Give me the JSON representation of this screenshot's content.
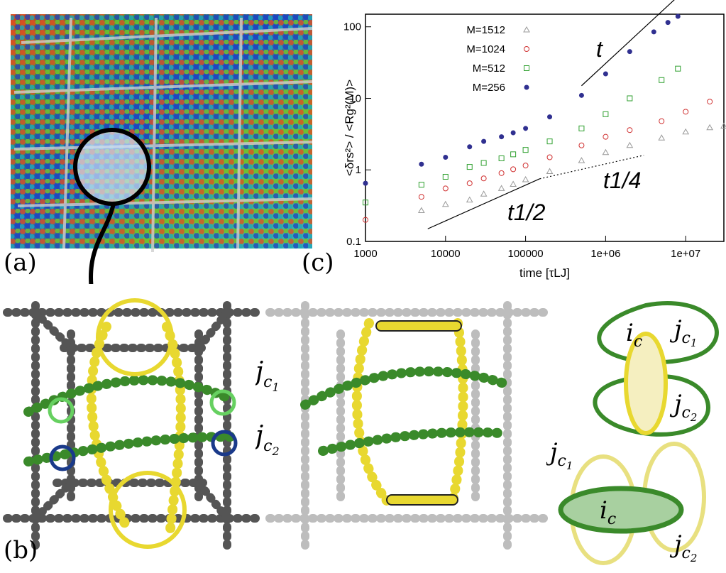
{
  "labels": {
    "a": "(a)",
    "b": "(b)",
    "c": "(c)"
  },
  "chart_data": {
    "type": "scatter",
    "xlabel": "time [τLJ]",
    "ylabel": "<δrs²> / <Rg²(M)>",
    "xscale": "log",
    "yscale": "log",
    "xlim": [
      1000,
      30000000
    ],
    "ylim": [
      0.1,
      150
    ],
    "xticks": [
      "1000",
      "10000",
      "100000",
      "1e+06",
      "1e+07"
    ],
    "yticks": [
      "0.1",
      "1",
      "10",
      "100"
    ],
    "legend_position": "top-left",
    "series": [
      {
        "name": "M=1512",
        "marker": "triangle-open",
        "color": "#999999",
        "x": [
          5000,
          10000,
          20000,
          30000,
          50000,
          70000,
          100000,
          200000,
          500000,
          1000000,
          2000000,
          5000000,
          10000000,
          20000000,
          30000000
        ],
        "y": [
          0.27,
          0.33,
          0.38,
          0.46,
          0.55,
          0.63,
          0.73,
          0.95,
          1.35,
          1.75,
          2.2,
          2.8,
          3.4,
          3.9,
          4.1
        ]
      },
      {
        "name": "M=1024",
        "marker": "circle-open",
        "color": "#d03030",
        "x": [
          1000,
          5000,
          10000,
          20000,
          30000,
          50000,
          70000,
          100000,
          200000,
          500000,
          1000000,
          2000000,
          5000000,
          10000000,
          20000000
        ],
        "y": [
          0.2,
          0.42,
          0.55,
          0.65,
          0.76,
          0.9,
          1.02,
          1.15,
          1.5,
          2.2,
          2.9,
          3.6,
          4.8,
          6.5,
          9.0
        ]
      },
      {
        "name": "M=512",
        "marker": "square-open",
        "color": "#30a030",
        "x": [
          1000,
          5000,
          10000,
          20000,
          30000,
          50000,
          70000,
          100000,
          200000,
          500000,
          1000000,
          2000000,
          5000000,
          8000000
        ],
        "y": [
          0.35,
          0.62,
          0.8,
          1.1,
          1.25,
          1.45,
          1.65,
          1.9,
          2.5,
          3.8,
          6.0,
          10,
          18,
          26
        ]
      },
      {
        "name": "M=256",
        "marker": "circle-filled",
        "color": "#303090",
        "x": [
          1000,
          5000,
          10000,
          20000,
          30000,
          50000,
          70000,
          100000,
          200000,
          500000,
          1000000,
          2000000,
          4000000,
          6000000,
          8000000
        ],
        "y": [
          0.65,
          1.2,
          1.5,
          2.1,
          2.5,
          2.9,
          3.3,
          3.8,
          5.5,
          11,
          22,
          45,
          85,
          115,
          140
        ]
      }
    ],
    "guides": [
      {
        "label": "t",
        "x": [
          500000,
          9000000
        ],
        "y": [
          15,
          300
        ]
      },
      {
        "label": "t1/2",
        "x": [
          6000,
          150000
        ],
        "y": [
          0.15,
          0.75
        ]
      },
      {
        "label": "t1/4",
        "x": [
          150000,
          3000000
        ],
        "y": [
          0.75,
          1.6
        ]
      }
    ]
  },
  "diagram_labels": {
    "j": "j",
    "sub_c": "c",
    "sub_1": "1",
    "sub_2": "2",
    "i": "i"
  },
  "colors": {
    "yellow": "#e8d830",
    "green": "#3a8a2a",
    "grey": "#7a7a7a",
    "light_green_circle": "#66d060",
    "blue_circle": "#1a3a8a"
  }
}
